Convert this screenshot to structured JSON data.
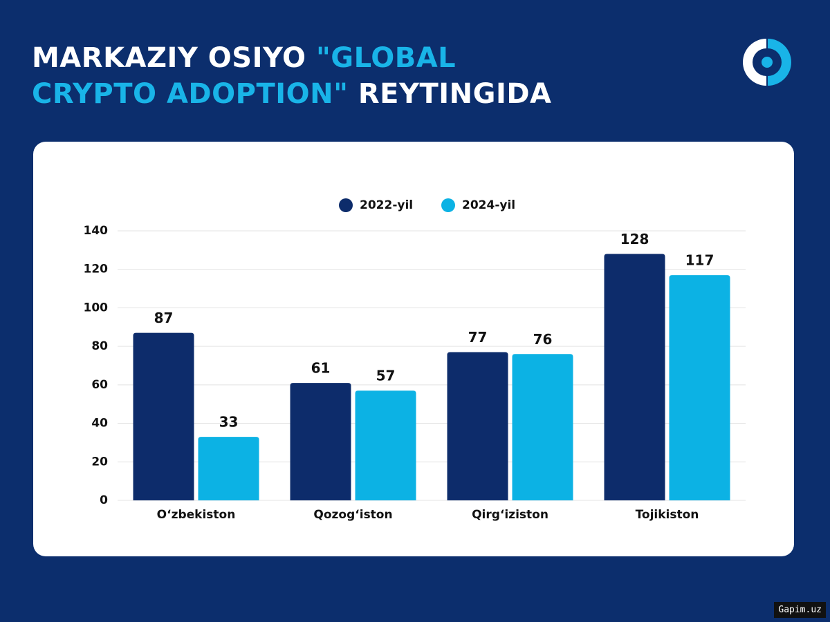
{
  "title": [
    "MARKAZIY OSIYO",
    "\"GLOBAL",
    "CRYPTO ADOPTION\"",
    "REYTINGIDA"
  ],
  "watermark": "Gapim.uz",
  "chart_data": {
    "type": "bar",
    "categories": [
      "O‘zbekiston",
      "Qozog‘iston",
      "Qirg‘iziston",
      "Tojikiston"
    ],
    "series": [
      {
        "name": "2022-yil",
        "color": "#0d2c6b",
        "values": [
          87,
          61,
          77,
          128
        ]
      },
      {
        "name": "2024-yil",
        "color": "#0cb2e4",
        "values": [
          33,
          57,
          76,
          117
        ]
      }
    ],
    "ylim": [
      0,
      140
    ],
    "yticks": [
      0,
      20,
      40,
      60,
      80,
      100,
      120,
      140
    ],
    "grid": true,
    "legend": "top"
  }
}
